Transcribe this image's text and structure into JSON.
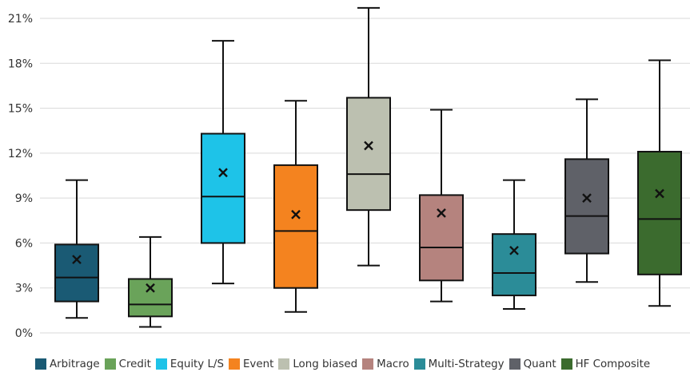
{
  "chart_data": {
    "type": "boxplot",
    "title": "",
    "xlabel": "",
    "ylabel": "",
    "ylim": [
      0,
      21
    ],
    "yticks": [
      "0%",
      "3%",
      "6%",
      "9%",
      "12%",
      "15%",
      "18%",
      "21%"
    ],
    "ytick_values": [
      0,
      3,
      6,
      9,
      12,
      15,
      18,
      21
    ],
    "grid": "horizontal",
    "legend_position": "bottom",
    "mean_marker": "×",
    "series": [
      {
        "name": "Arbitrage",
        "color": "#1a5a74",
        "min": 1.0,
        "q1": 2.1,
        "median": 3.7,
        "q3": 5.9,
        "max": 10.2,
        "mean": 4.9
      },
      {
        "name": "Credit",
        "color": "#6aa35a",
        "min": 0.4,
        "q1": 1.1,
        "median": 1.9,
        "q3": 3.6,
        "max": 6.4,
        "mean": 3.0
      },
      {
        "name": "Equity L/S",
        "color": "#1ec3e8",
        "min": 3.3,
        "q1": 6.0,
        "median": 9.1,
        "q3": 13.3,
        "max": 19.5,
        "mean": 10.7
      },
      {
        "name": "Event",
        "color": "#f4831f",
        "min": 1.4,
        "q1": 3.0,
        "median": 6.8,
        "q3": 11.2,
        "max": 15.5,
        "mean": 7.9
      },
      {
        "name": "Long biased",
        "color": "#bcc0b0",
        "min": 4.5,
        "q1": 8.2,
        "median": 10.6,
        "q3": 15.7,
        "max": 21.7,
        "mean": 12.5
      },
      {
        "name": "Macro",
        "color": "#b5837e",
        "min": 2.1,
        "q1": 3.5,
        "median": 5.7,
        "q3": 9.2,
        "max": 14.9,
        "mean": 8.0
      },
      {
        "name": "Multi-Strategy",
        "color": "#2b8c98",
        "min": 1.6,
        "q1": 2.5,
        "median": 4.0,
        "q3": 6.6,
        "max": 10.2,
        "mean": 5.5
      },
      {
        "name": "Quant",
        "color": "#5f6168",
        "min": 3.4,
        "q1": 5.3,
        "median": 7.8,
        "q3": 11.6,
        "max": 15.6,
        "mean": 9.0
      },
      {
        "name": "HF Composite",
        "color": "#3b6b2e",
        "min": 1.8,
        "q1": 3.9,
        "median": 7.6,
        "q3": 12.1,
        "max": 18.2,
        "mean": 9.3
      }
    ]
  }
}
